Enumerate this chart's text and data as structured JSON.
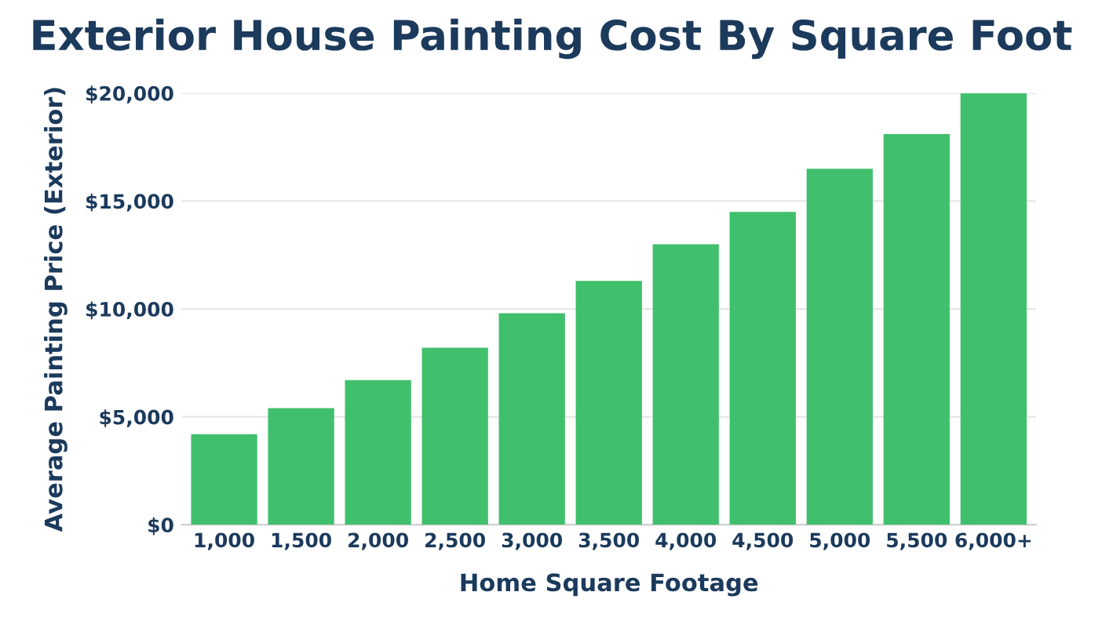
{
  "chart_data": {
    "type": "bar",
    "title": "Exterior House Painting Cost By Square Foot",
    "xlabel": "Home Square Footage",
    "ylabel": "Average Painting Price (Exterior)",
    "categories": [
      "1,000",
      "1,500",
      "2,000",
      "2,500",
      "3,000",
      "3,500",
      "4,000",
      "4,500",
      "5,000",
      "5,500",
      "6,000+"
    ],
    "values": [
      4200,
      5400,
      6700,
      8200,
      9800,
      11300,
      13000,
      14500,
      16500,
      18100,
      20000
    ],
    "color": "#40c06c",
    "ylim": [
      0,
      20000
    ],
    "yticks": [
      {
        "value": 0,
        "label": "$0"
      },
      {
        "value": 5000,
        "label": "$5,000"
      },
      {
        "value": 10000,
        "label": "$10,000"
      },
      {
        "value": 15000,
        "label": "$15,000"
      },
      {
        "value": 20000,
        "label": "$20,000"
      }
    ],
    "grid": "y"
  }
}
